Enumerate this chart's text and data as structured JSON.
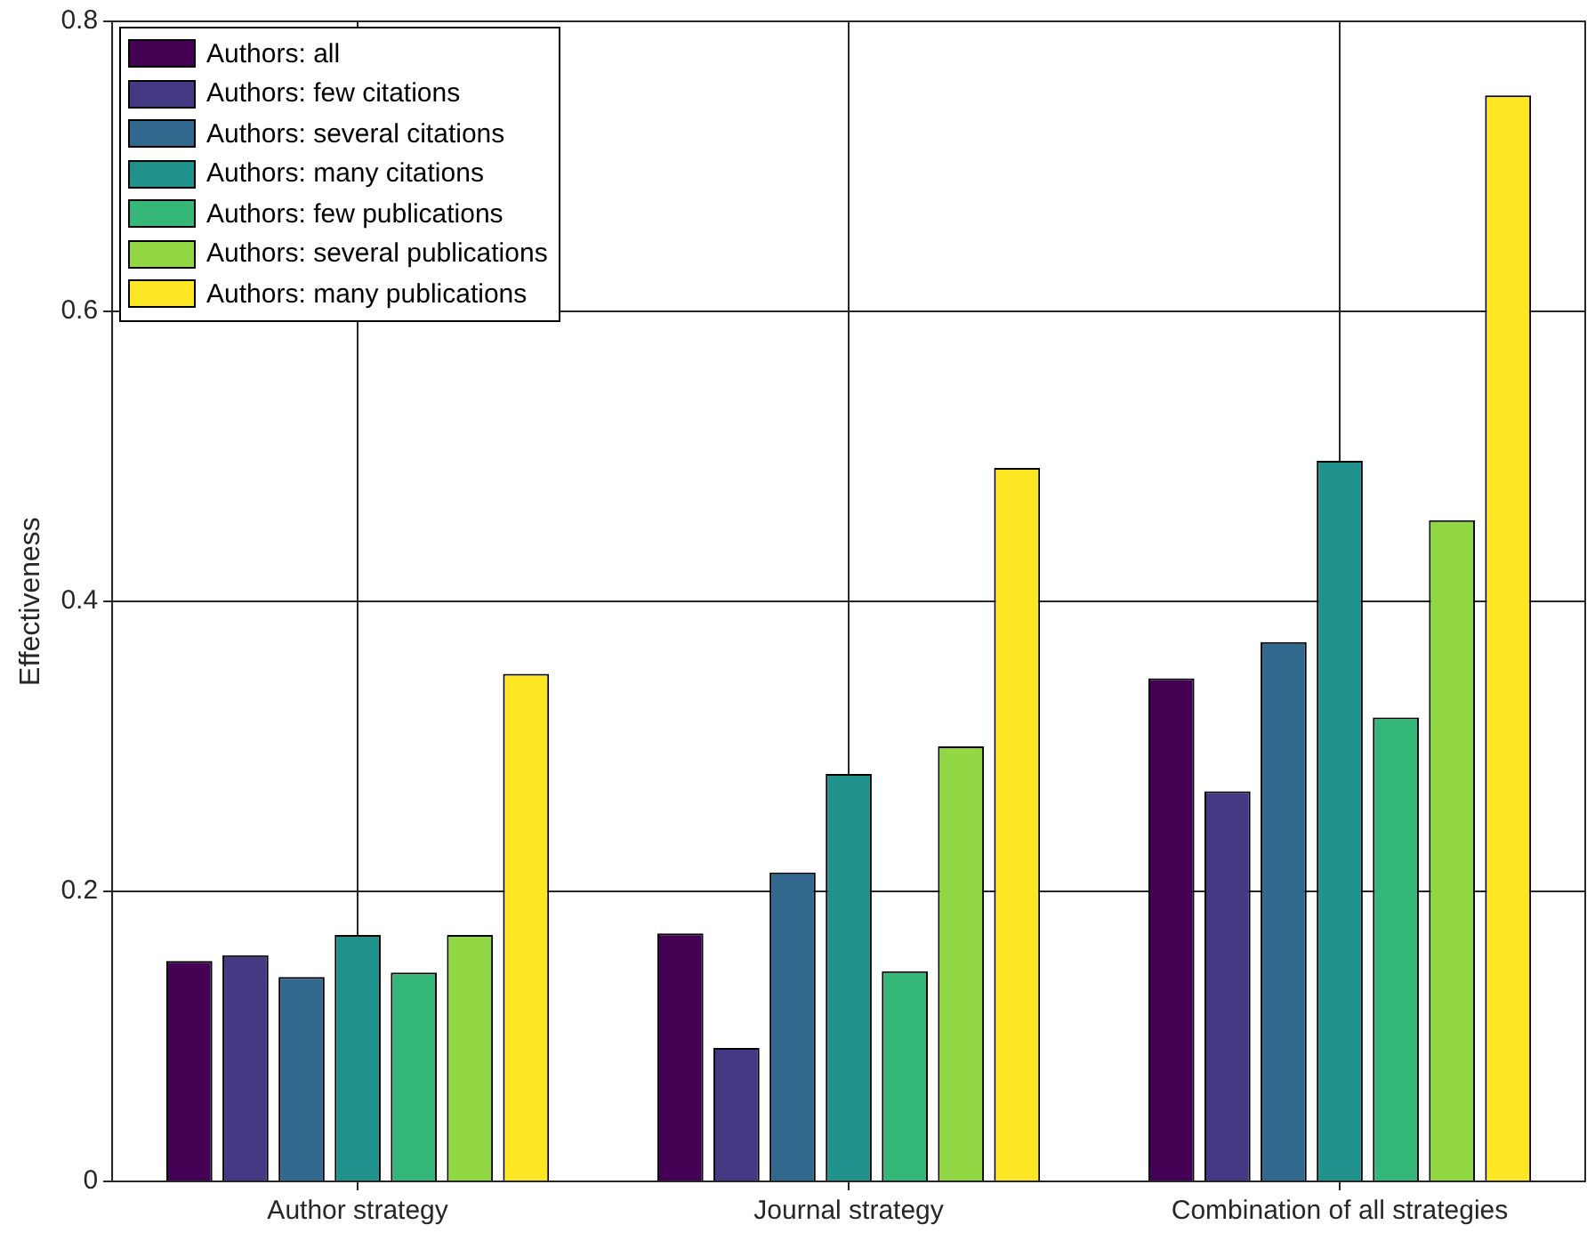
{
  "chart_data": {
    "type": "bar",
    "ylabel": "Effectiveness",
    "categories": [
      "Author strategy",
      "Journal strategy",
      "Combination of all strategies"
    ],
    "series": [
      {
        "name": "Authors: all",
        "color": "#440154",
        "values": [
          0.152,
          0.171,
          0.347
        ]
      },
      {
        "name": "Authors: few citations",
        "color": "#443983",
        "values": [
          0.156,
          0.092,
          0.269
        ]
      },
      {
        "name": "Authors: several citations",
        "color": "#31688e",
        "values": [
          0.141,
          0.213,
          0.372
        ]
      },
      {
        "name": "Authors: many citations",
        "color": "#21918c",
        "values": [
          0.17,
          0.281,
          0.497
        ]
      },
      {
        "name": "Authors: few publications",
        "color": "#35b779",
        "values": [
          0.144,
          0.145,
          0.32
        ]
      },
      {
        "name": "Authors: several publications",
        "color": "#90d743",
        "values": [
          0.17,
          0.3,
          0.456
        ]
      },
      {
        "name": "Authors: many publications",
        "color": "#fde725",
        "values": [
          0.35,
          0.492,
          0.749
        ]
      }
    ],
    "ylim": [
      0,
      0.8
    ],
    "yticks": [
      0,
      0.2,
      0.4,
      0.6,
      0.8
    ],
    "grid": true,
    "legend": "top left"
  }
}
